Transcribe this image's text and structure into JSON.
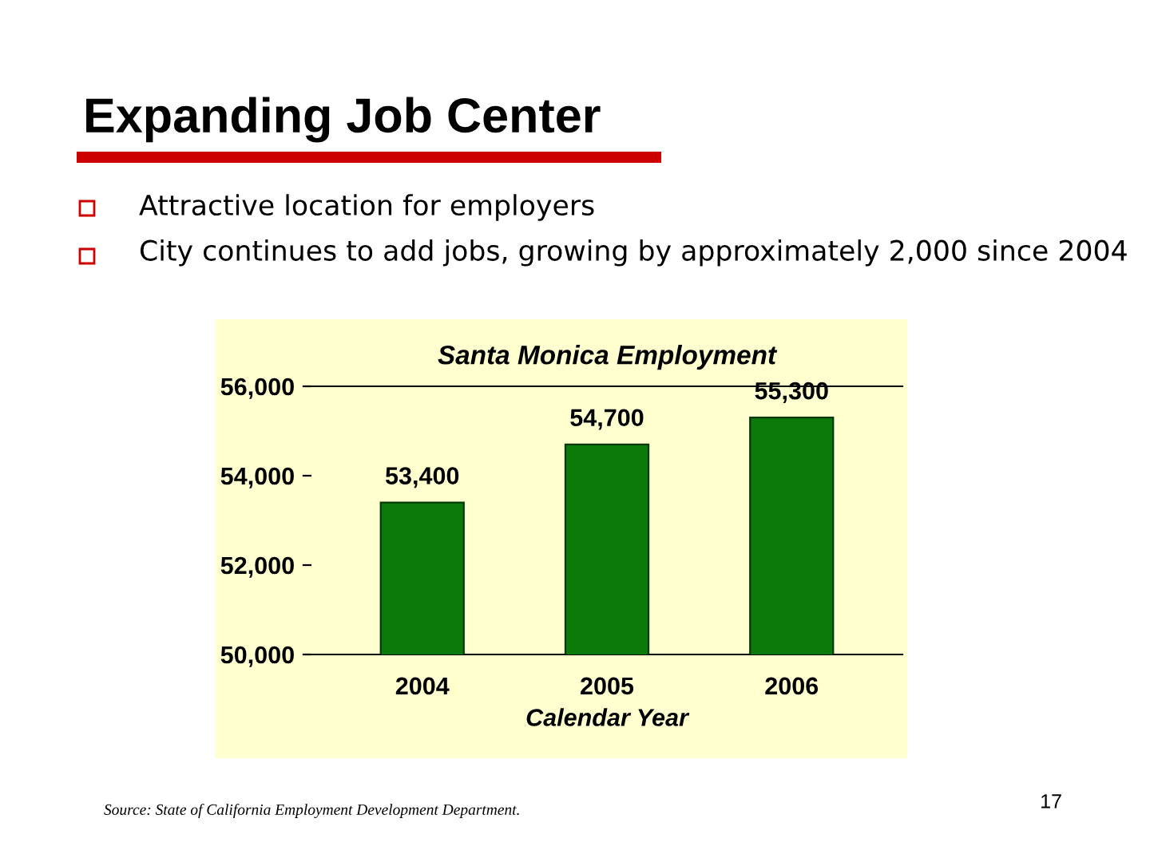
{
  "chart_data": {
    "type": "bar",
    "title": "Expanding Job Center",
    "subtitle": "Santa Monica Employment",
    "xlabel": "Calendar Year",
    "categories": [
      "2004",
      "2005",
      "2006"
    ],
    "values": [
      53400,
      54700,
      55300
    ],
    "color": "#0b7a0b",
    "value_labels": [
      "53,400",
      "54,700",
      "55,300"
    ],
    "ylim": [
      50000,
      56000
    ],
    "yticks": [
      {
        "value": 50000,
        "label": "50,000"
      },
      {
        "value": 52000,
        "label": "52,000"
      },
      {
        "value": 54000,
        "label": "54,000"
      },
      {
        "value": 56000,
        "label": "56,000"
      }
    ],
    "grid": false,
    "annotations": [
      "Attractive location for employers",
      "City continues to add jobs, growing by approximately 2,000 since 2004",
      "Source: State of California Employment Development Department.",
      "17"
    ]
  }
}
